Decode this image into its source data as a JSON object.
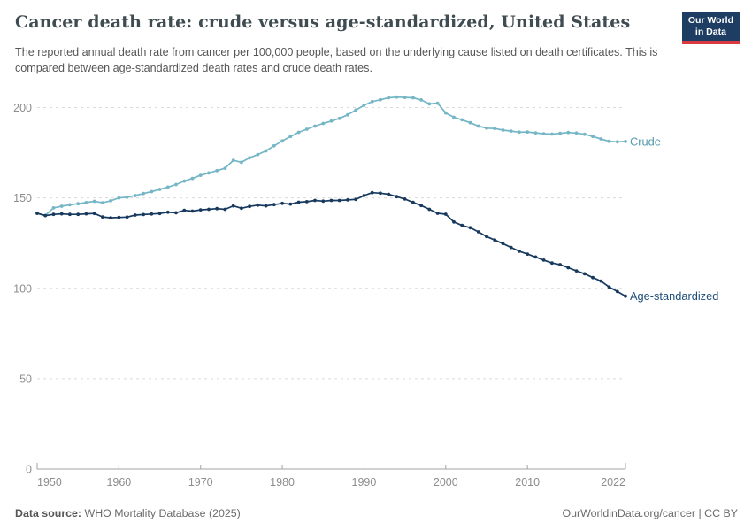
{
  "header": {
    "title": "Cancer death rate: crude versus age-standardized, United States",
    "subtitle": "The reported annual death rate from cancer per 100,000 people, based on the underlying cause listed on death certificates. This is compared between age-standardized death rates and crude death rates.",
    "logo": {
      "line1": "Our World",
      "line2": "in Data"
    }
  },
  "footer": {
    "source_label": "Data source:",
    "source_value": " WHO Mortality Database (2025)",
    "credit": "OurWorldinData.org/cancer | CC BY"
  },
  "colors": {
    "crude_line": "#74b6c5",
    "crude_label": "#5699ab",
    "age_std_line": "#17395d",
    "age_std_label": "#1d4e79",
    "logo_bg": "#1d3d63",
    "logo_bar": "#d93a3f",
    "grid": "#dadada",
    "axis_text": "#8d8d8d"
  },
  "chart_data": {
    "type": "line",
    "title": "Cancer death rate: crude versus age-standardized, United States",
    "xlabel": "",
    "ylabel": "",
    "ylim": [
      0,
      210
    ],
    "yticks": [
      0,
      50,
      100,
      150,
      200
    ],
    "xticks": [
      1950,
      1960,
      1970,
      1980,
      1990,
      2000,
      2010,
      2022
    ],
    "grid": "horizontal-dashed",
    "legend": "end-of-line-labels",
    "x": [
      1950,
      1951,
      1952,
      1953,
      1954,
      1955,
      1956,
      1957,
      1958,
      1959,
      1960,
      1961,
      1962,
      1963,
      1964,
      1965,
      1966,
      1967,
      1968,
      1969,
      1970,
      1971,
      1972,
      1973,
      1974,
      1975,
      1976,
      1977,
      1978,
      1979,
      1980,
      1981,
      1982,
      1983,
      1984,
      1985,
      1986,
      1987,
      1988,
      1989,
      1990,
      1991,
      1992,
      1993,
      1994,
      1995,
      1996,
      1997,
      1998,
      1999,
      2000,
      2001,
      2002,
      2003,
      2004,
      2005,
      2006,
      2007,
      2008,
      2009,
      2010,
      2011,
      2012,
      2013,
      2014,
      2015,
      2016,
      2017,
      2018,
      2019,
      2020,
      2021,
      2022
    ],
    "series": [
      {
        "name": "Crude",
        "color": "#74b6c5",
        "label_color": "#5699ab",
        "values": [
          141.5,
          140.3,
          144.5,
          145.4,
          146.2,
          146.8,
          147.4,
          148.1,
          147.3,
          148.4,
          150.0,
          150.4,
          151.3,
          152.4,
          153.5,
          154.7,
          156.0,
          157.4,
          159.3,
          160.8,
          162.5,
          163.8,
          165.1,
          166.4,
          170.8,
          169.7,
          172.2,
          174.0,
          176.0,
          178.8,
          181.5,
          184.0,
          186.3,
          188.0,
          189.7,
          191.2,
          192.5,
          194.0,
          196.0,
          198.6,
          201.2,
          203.3,
          204.3,
          205.4,
          205.8,
          205.6,
          205.4,
          204.2,
          202.0,
          202.4,
          197.0,
          194.6,
          193.2,
          191.6,
          189.7,
          188.6,
          188.4,
          187.5,
          187.0,
          186.4,
          186.5,
          186.0,
          185.5,
          185.3,
          185.7,
          186.2,
          185.9,
          185.2,
          184.0,
          182.6,
          181.3,
          181.0,
          181.2
        ]
      },
      {
        "name": "Age-standardized",
        "color": "#17395d",
        "label_color": "#1d4e79",
        "values": [
          141.5,
          140.2,
          140.9,
          141.2,
          140.9,
          140.9,
          141.2,
          141.4,
          139.5,
          139.0,
          139.2,
          139.4,
          140.5,
          140.8,
          141.1,
          141.4,
          142.1,
          141.8,
          143.1,
          142.7,
          143.4,
          143.7,
          144.1,
          143.7,
          145.6,
          144.3,
          145.3,
          146.0,
          145.6,
          146.3,
          147.0,
          146.6,
          147.6,
          147.9,
          148.6,
          148.2,
          148.6,
          148.6,
          148.9,
          149.2,
          151.3,
          152.9,
          152.6,
          152.0,
          150.7,
          149.4,
          147.5,
          145.8,
          143.7,
          141.5,
          141.0,
          136.7,
          134.8,
          133.5,
          131.2,
          128.6,
          126.7,
          124.7,
          122.6,
          120.5,
          118.9,
          117.3,
          115.6,
          114.0,
          113.1,
          111.4,
          109.6,
          108.0,
          105.9,
          104.0,
          100.7,
          98.2,
          95.6
        ]
      }
    ]
  }
}
